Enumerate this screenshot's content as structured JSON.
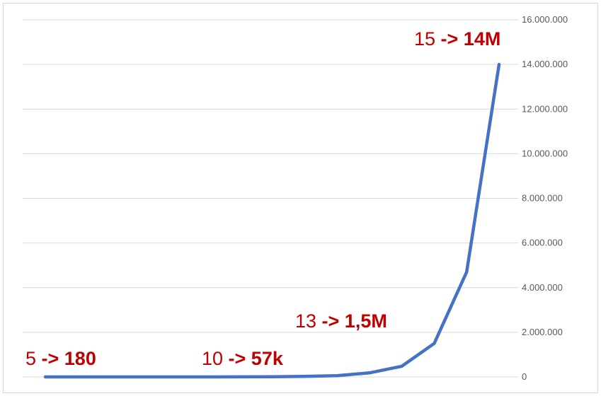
{
  "chart_data": {
    "type": "line",
    "x": [
      1,
      2,
      3,
      4,
      5,
      6,
      7,
      8,
      9,
      10,
      11,
      12,
      13,
      14,
      15
    ],
    "series": [
      {
        "values": [
          0,
          0,
          0,
          0,
          180,
          1000,
          3000,
          9000,
          25000,
          57000,
          180000,
          480000,
          1500000,
          4700000,
          14000000
        ],
        "color": "#4472c4"
      }
    ],
    "ylim": [
      0,
      16000000
    ],
    "yticks": [
      {
        "value": 0,
        "label": "0"
      },
      {
        "value": 2000000,
        "label": "2.000.000"
      },
      {
        "value": 4000000,
        "label": "4.000.000"
      },
      {
        "value": 6000000,
        "label": "6.000.000"
      },
      {
        "value": 8000000,
        "label": "8.000.000"
      },
      {
        "value": 10000000,
        "label": "10.000.000"
      },
      {
        "value": 12000000,
        "label": "12.000.000"
      },
      {
        "value": 14000000,
        "label": "14.000.000"
      },
      {
        "value": 16000000,
        "label": "16.000.000"
      }
    ],
    "y_axis_position": "right",
    "grid": true,
    "annotations": [
      {
        "x": 1,
        "prefix": "5 ",
        "emph": "-> 180"
      },
      {
        "x": 6,
        "prefix": "10 ",
        "emph": "-> 57k"
      },
      {
        "x": 12,
        "prefix": "13 ",
        "emph": "-> 1,5M"
      },
      {
        "x": 15,
        "prefix": "15 ",
        "emph": "-> 14M"
      }
    ],
    "annotation_color": "#c00000",
    "grid_color": "#d9d9d9"
  }
}
